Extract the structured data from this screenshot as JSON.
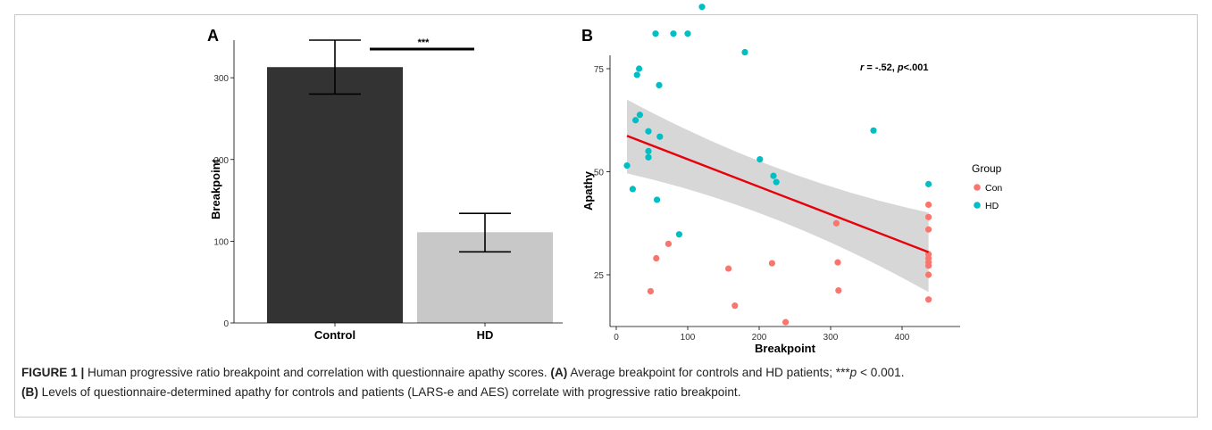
{
  "chart_data": [
    {
      "type": "bar",
      "panel_label": "A",
      "categories": [
        "Control",
        "HD"
      ],
      "values": [
        313,
        111
      ],
      "error_low": [
        280,
        87
      ],
      "error_high": [
        346,
        134
      ],
      "colors": [
        "#333333",
        "#c8c8c8"
      ],
      "ylabel": "Breakpoint",
      "xlabel": "",
      "ylim": [
        0,
        346
      ],
      "yticks": [
        "0",
        "100",
        "200",
        "300"
      ],
      "significance": "***",
      "grid": false
    },
    {
      "type": "scatter",
      "panel_label": "B",
      "xlabel": "Breakpoint",
      "ylabel": "Apathy",
      "xlim": [
        -5,
        450
      ],
      "ylim": [
        9,
        95
      ],
      "xticks": [
        "0",
        "100",
        "200",
        "300",
        "400"
      ],
      "yticks": [
        "25",
        "50",
        "75"
      ],
      "annotation": {
        "r": "r",
        "r_text": " = -.52, ",
        "p": "p",
        "p_text": "<.001"
      },
      "legend": {
        "title": "Group",
        "position": "right",
        "entries": [
          {
            "label": "Con",
            "color": "#f8766d"
          },
          {
            "label": "HD",
            "color": "#00bfc4"
          }
        ]
      },
      "regression": {
        "x": [
          15,
          437
        ],
        "y": [
          58.7,
          30.5
        ],
        "color": "#e8000b",
        "band_lower_at_x": [
          49.6,
          20.8
        ],
        "band_upper_at_x": [
          67.5,
          40.1
        ]
      },
      "series": [
        {
          "name": "HD",
          "color": "#00bfc4",
          "points": [
            [
              15,
              51.5
            ],
            [
              23,
              45.8
            ],
            [
              27,
              62.5
            ],
            [
              29,
              73.5
            ],
            [
              32,
              75
            ],
            [
              33,
              63.8
            ],
            [
              45,
              59.8
            ],
            [
              45,
              55
            ],
            [
              45,
              53.5
            ],
            [
              55,
              83.5
            ],
            [
              57,
              43.2
            ],
            [
              60,
              71
            ],
            [
              61,
              58.5
            ],
            [
              80,
              83.5
            ],
            [
              88,
              34.8
            ],
            [
              100,
              83.5
            ],
            [
              120,
              90
            ],
            [
              180,
              79
            ],
            [
              201,
              53
            ],
            [
              220,
              49
            ],
            [
              224,
              47.5
            ],
            [
              360,
              60
            ],
            [
              437,
              47
            ]
          ]
        },
        {
          "name": "Con",
          "color": "#f8766d",
          "points": [
            [
              48,
              21
            ],
            [
              56,
              29
            ],
            [
              73,
              32.5
            ],
            [
              157,
              26.5
            ],
            [
              166,
              17.5
            ],
            [
              218,
              27.8
            ],
            [
              237,
              13.5
            ],
            [
              308,
              37.5
            ],
            [
              310,
              28
            ],
            [
              311,
              21.2
            ],
            [
              437,
              42
            ],
            [
              437,
              39
            ],
            [
              437,
              36
            ],
            [
              437,
              30
            ],
            [
              437,
              29
            ],
            [
              437,
              28
            ],
            [
              437,
              27.2
            ],
            [
              437,
              25
            ],
            [
              437,
              19
            ]
          ]
        }
      ]
    }
  ],
  "caption": {
    "figure_label": "FIGURE 1 |",
    "text1": " Human progressive ratio breakpoint and correlation with questionnaire apathy scores. ",
    "a_label": "(A)",
    "text2": " Average breakpoint for controls and HD patients; ***",
    "p_italic": "p",
    "text3": " < 0.001.",
    "b_label": "(B)",
    "text4": " Levels of questionnaire-determined apathy for controls and patients (LARS-e and AES) correlate with progressive ratio breakpoint."
  }
}
